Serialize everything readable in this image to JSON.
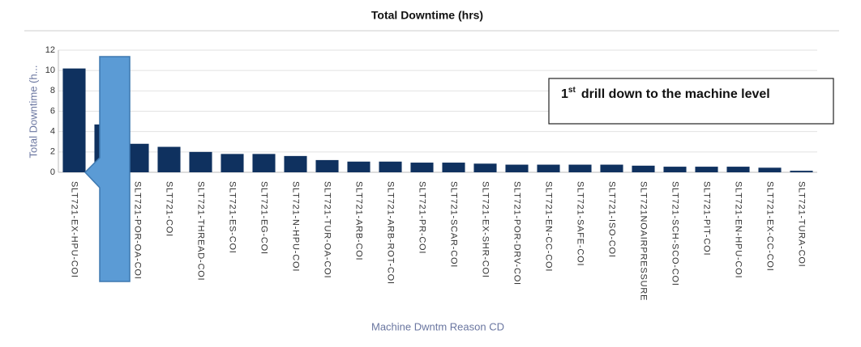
{
  "chart_data": {
    "type": "bar",
    "title": "Total Downtime (hrs)",
    "y_label": "Total Downtime (h...",
    "x_label": "Machine Dwntm Reason CD",
    "categories": [
      "SLT721-EX-HPU-COI",
      null,
      "SLT721-POR-OA-COI",
      "SLT721-COI",
      "SLT721-THREAD-COI",
      "SLT721-ES-COI",
      "SLT721-EG-COI",
      "SLT721-N-HPU-COI",
      "SLT721-TUR-OA-COI",
      "SLT721-ARB-COI",
      "SLT721-ARB-ROT-COI",
      "SLT721-PR-COI",
      "SLT721-SCAR-COI",
      "SLT721-EX-SHR-COI",
      "SLT721-POR-DRV-COI",
      "SLT721-EN-CC-COI",
      "SLT721-SAFE-COI",
      "SLT721-ISO-COI",
      "SLT721NOAIRPRESSURE",
      "SLT721-SCH-SCO-COI",
      "SLT721-PIT-COI",
      "SLT721-EN-HPU-COI",
      "SLT721-EX-CC-COI",
      "SLT721-TURA-COI"
    ],
    "values": [
      10.2,
      4.7,
      2.8,
      2.5,
      2.0,
      1.8,
      1.8,
      1.6,
      1.2,
      1.05,
      1.05,
      0.95,
      0.95,
      0.85,
      0.75,
      0.75,
      0.75,
      0.75,
      0.65,
      0.55,
      0.55,
      0.55,
      0.45,
      0.15
    ],
    "color": "#0f315f",
    "ylim": [
      0,
      12
    ],
    "yticks": [
      0,
      2,
      4,
      6,
      8,
      10,
      12
    ],
    "grid": true,
    "annotation": {
      "number": "1",
      "superscript": "st",
      "text": "drill down to the machine level"
    }
  }
}
